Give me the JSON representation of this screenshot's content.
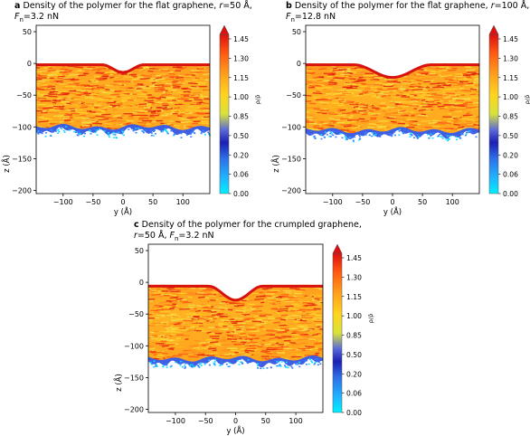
{
  "figure": {
    "panels": [
      {
        "id": "a",
        "label": "a",
        "title_line1": "Density of the polymer for the flat graphene, ",
        "r_symbol": "r",
        "r_value": "=50 Å,",
        "f_symbol": "F",
        "f_sub": "n",
        "f_value": "=3.2 nN"
      },
      {
        "id": "b",
        "label": "b",
        "title_line1": "Density of the polymer for the flat graphene, ",
        "r_symbol": "r",
        "r_value": "=100 Å,",
        "f_symbol": "F",
        "f_sub": "n",
        "f_value": "=12.8 nN"
      },
      {
        "id": "c",
        "label": "c",
        "title_line1": "Density of the polymer for the crumpled graphene,",
        "r_symbol": "r",
        "r_value": "=50 Å, ",
        "f_symbol": "F",
        "f_sub": "n",
        "f_value": "=3.2 nN"
      }
    ]
  },
  "chart_data": [
    {
      "type": "heatmap",
      "panel": "a",
      "xlabel": "y (Å)",
      "ylabel": "z (Å)",
      "xlim": [
        -145,
        145
      ],
      "ylim": [
        -205,
        60
      ],
      "xticks": [
        -100,
        -50,
        0,
        50,
        100
      ],
      "yticks": [
        50,
        0,
        -50,
        -100,
        -150,
        -200
      ],
      "xtick_labels": [
        "−100",
        "−50",
        "0",
        "50",
        "100"
      ],
      "ytick_labels": [
        "50",
        "0",
        "−50",
        "−100",
        "−150",
        "−200"
      ],
      "grid": false,
      "surface": {
        "flat_z": 0,
        "dip_depth": 12,
        "dip_center": 0,
        "dip_halfwidth": 35
      },
      "polymer_bottom_z": -100,
      "colorbar": {
        "label": "ρ/ρ̄",
        "ticks": [
          1.45,
          1.3,
          1.15,
          1.0,
          0.85,
          0.5,
          0.2,
          0.06,
          0.0
        ],
        "tick_labels": [
          "1.45",
          "1.30",
          "1.15",
          "1.00",
          "0.85",
          "0.50",
          "0.20",
          "0.06",
          "0.00"
        ],
        "colors": [
          "#00e5ff",
          "#1fa7ff",
          "#2750d8",
          "#1a1fb0",
          "#4a5fd0",
          "#d7e03a",
          "#ffd21f",
          "#ff9d1f",
          "#ff5a10",
          "#e01010"
        ]
      }
    },
    {
      "type": "heatmap",
      "panel": "b",
      "xlabel": "y (Å)",
      "ylabel": "z (Å)",
      "xlim": [
        -145,
        145
      ],
      "ylim": [
        -205,
        60
      ],
      "xticks": [
        -100,
        -50,
        0,
        50,
        100
      ],
      "yticks": [
        50,
        0,
        -50,
        -100,
        -150,
        -200
      ],
      "xtick_labels": [
        "−100",
        "−50",
        "0",
        "50",
        "100"
      ],
      "ytick_labels": [
        "50",
        "0",
        "−50",
        "−100",
        "−150",
        "−200"
      ],
      "grid": false,
      "surface": {
        "flat_z": 0,
        "dip_depth": 20,
        "dip_center": 0,
        "dip_halfwidth": 65
      },
      "polymer_bottom_z": -105,
      "colorbar": {
        "label": "ρ/ρ̄",
        "ticks": [
          1.45,
          1.3,
          1.15,
          1.0,
          0.85,
          0.5,
          0.2,
          0.06,
          0.0
        ],
        "tick_labels": [
          "1.45",
          "1.30",
          "1.15",
          "1.00",
          "0.85",
          "0.50",
          "0.20",
          "0.06",
          "0.00"
        ],
        "colors": [
          "#00e5ff",
          "#1fa7ff",
          "#2750d8",
          "#1a1fb0",
          "#4a5fd0",
          "#d7e03a",
          "#ffd21f",
          "#ff9d1f",
          "#ff5a10",
          "#e01010"
        ]
      }
    },
    {
      "type": "heatmap",
      "panel": "c",
      "xlabel": "y (Å)",
      "ylabel": "z (Å)",
      "xlim": [
        -145,
        145
      ],
      "ylim": [
        -205,
        60
      ],
      "xticks": [
        -100,
        -50,
        0,
        50,
        100
      ],
      "yticks": [
        50,
        0,
        -50,
        -100,
        -150,
        -200
      ],
      "xtick_labels": [
        "−100",
        "−50",
        "0",
        "50",
        "100"
      ],
      "ytick_labels": [
        "50",
        "0",
        "−50",
        "−100",
        "−150",
        "−200"
      ],
      "grid": false,
      "surface": {
        "flat_z": -4,
        "dip_depth": 22,
        "dip_center": 0,
        "dip_halfwidth": 45
      },
      "polymer_bottom_z": -120,
      "colorbar": {
        "label": "ρ/ρ̄",
        "ticks": [
          1.45,
          1.3,
          1.15,
          1.0,
          0.85,
          0.5,
          0.2,
          0.06,
          0.0
        ],
        "tick_labels": [
          "1.45",
          "1.30",
          "1.15",
          "1.00",
          "0.85",
          "0.50",
          "0.20",
          "0.06",
          "0.00"
        ],
        "colors": [
          "#00e5ff",
          "#1fa7ff",
          "#2750d8",
          "#1a1fb0",
          "#4a5fd0",
          "#d7e03a",
          "#ffd21f",
          "#ff9d1f",
          "#ff5a10",
          "#e01010"
        ]
      }
    }
  ]
}
